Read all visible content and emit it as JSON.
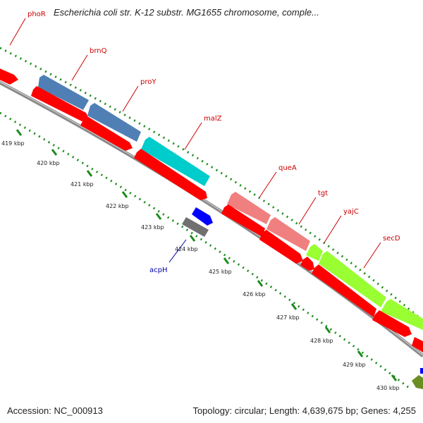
{
  "title": "Escherichia coli str. K-12 substr. MG1655 chromosome, comple...",
  "footer": {
    "accession": "Accession: NC_000913",
    "summary": "Topology: circular; Length: 4,639,675 bp; Genes: 4,255"
  },
  "kbp_labels": [
    "419 kbp",
    "420 kbp",
    "421 kbp",
    "422 kbp",
    "423 kbp",
    "424 kbp",
    "425 kbp",
    "426 kbp",
    "427 kbp",
    "428 kbp",
    "429 kbp",
    "430 kbp"
  ],
  "gene_labels": [
    {
      "name": "phoR",
      "color": "#cc0000"
    },
    {
      "name": "brnQ",
      "color": "#cc0000"
    },
    {
      "name": "proY",
      "color": "#cc0000"
    },
    {
      "name": "malZ",
      "color": "#cc0000"
    },
    {
      "name": "queA",
      "color": "#cc0000"
    },
    {
      "name": "tgt",
      "color": "#cc0000"
    },
    {
      "name": "yajC",
      "color": "#cc0000"
    },
    {
      "name": "secD",
      "color": "#cc0000"
    },
    {
      "name": "acpH",
      "color": "#0000aa"
    }
  ],
  "colors": {
    "backbone": "#8a8a8a",
    "cds": "#ff0000",
    "brnQ_track": "#4f7fb5",
    "malZ_track": "#00cccc",
    "queA_track": "#f08080",
    "secD_track": "#99ff33",
    "acpH_blue": "#0000ff",
    "acpH_gray": "#707070",
    "olive": "#6b8e23",
    "tick_dot": "#1a8a1a"
  }
}
